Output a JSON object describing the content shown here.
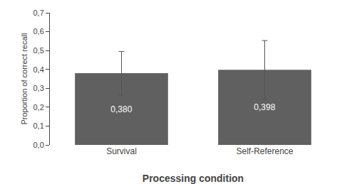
{
  "chart_data": {
    "type": "bar",
    "categories": [
      "Survival",
      "Self-Reference"
    ],
    "values": [
      0.38,
      0.398
    ],
    "errors": [
      0.115,
      0.155
    ],
    "value_labels": [
      "0,380",
      "0,398"
    ],
    "data_labels": true,
    "color": "#606060",
    "xlabel": "Processing condition",
    "ylabel": "Proportion of correct recall",
    "ylim": [
      0.0,
      0.7
    ],
    "yticks": [
      {
        "value": 0.0,
        "label": "0,0"
      },
      {
        "value": 0.1,
        "label": "0,1"
      },
      {
        "value": 0.2,
        "label": "0,2"
      },
      {
        "value": 0.3,
        "label": "0,3"
      },
      {
        "value": 0.4,
        "label": "0,4"
      },
      {
        "value": 0.5,
        "label": "0,5"
      },
      {
        "value": 0.6,
        "label": "0,6"
      },
      {
        "value": 0.7,
        "label": "0,7"
      }
    ],
    "grid": false
  }
}
